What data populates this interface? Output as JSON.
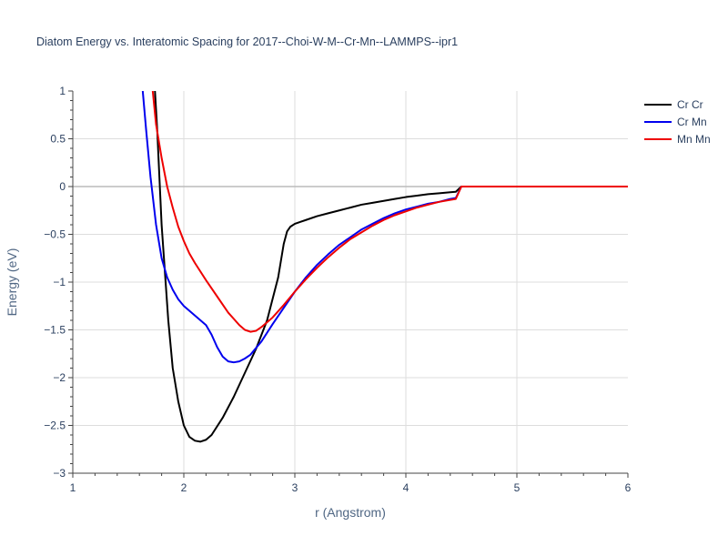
{
  "chart_data": {
    "type": "line",
    "title": "Diatom Energy vs. Interatomic Spacing for 2017--Choi-W-M--Cr-Mn--LAMMPS--ipr1",
    "xlabel": "r (Angstrom)",
    "ylabel": "Energy (eV)",
    "xlim": [
      1,
      6
    ],
    "ylim": [
      -3,
      1
    ],
    "xticks": [
      "1",
      "2",
      "3",
      "4",
      "5",
      "6"
    ],
    "yticks": [
      "1",
      "0.5",
      "0",
      "−0.5",
      "−1",
      "−1.5",
      "−2",
      "−2.5",
      "−3"
    ],
    "grid": true,
    "legend_position": "top-right",
    "series": [
      {
        "name": "Cr Cr",
        "color": "#000000",
        "x": [
          1.74,
          1.76,
          1.78,
          1.8,
          1.83,
          1.86,
          1.9,
          1.95,
          2.0,
          2.05,
          2.1,
          2.15,
          2.2,
          2.25,
          2.35,
          2.45,
          2.55,
          2.65,
          2.75,
          2.85,
          2.9,
          2.93,
          2.96,
          3.0,
          3.05,
          3.1,
          3.2,
          3.3,
          3.4,
          3.5,
          3.6,
          3.7,
          3.8,
          3.9,
          4.0,
          4.1,
          4.2,
          4.3,
          4.4,
          4.45,
          4.5,
          4.6,
          5.0,
          5.5,
          6.0
        ],
        "y": [
          1.0,
          0.6,
          0.1,
          -0.4,
          -0.9,
          -1.4,
          -1.9,
          -2.25,
          -2.5,
          -2.62,
          -2.66,
          -2.67,
          -2.65,
          -2.6,
          -2.42,
          -2.2,
          -1.95,
          -1.7,
          -1.4,
          -0.95,
          -0.6,
          -0.47,
          -0.42,
          -0.39,
          -0.37,
          -0.35,
          -0.31,
          -0.28,
          -0.25,
          -0.22,
          -0.19,
          -0.17,
          -0.15,
          -0.13,
          -0.11,
          -0.095,
          -0.08,
          -0.07,
          -0.06,
          -0.055,
          0,
          0,
          0,
          0,
          0
        ]
      },
      {
        "name": "Cr Mn",
        "color": "#0000ee",
        "x": [
          1.63,
          1.66,
          1.7,
          1.75,
          1.8,
          1.85,
          1.9,
          1.95,
          2.0,
          2.1,
          2.2,
          2.25,
          2.3,
          2.35,
          2.4,
          2.45,
          2.5,
          2.55,
          2.6,
          2.7,
          2.8,
          2.9,
          3.0,
          3.1,
          3.2,
          3.3,
          3.4,
          3.5,
          3.6,
          3.7,
          3.8,
          3.9,
          4.0,
          4.1,
          4.2,
          4.3,
          4.4,
          4.45,
          4.5,
          4.6,
          5.0,
          5.5,
          6.0
        ],
        "y": [
          1.0,
          0.6,
          0.1,
          -0.4,
          -0.75,
          -0.95,
          -1.08,
          -1.18,
          -1.25,
          -1.35,
          -1.45,
          -1.55,
          -1.68,
          -1.78,
          -1.83,
          -1.84,
          -1.83,
          -1.8,
          -1.76,
          -1.62,
          -1.44,
          -1.27,
          -1.1,
          -0.95,
          -0.82,
          -0.71,
          -0.61,
          -0.53,
          -0.45,
          -0.39,
          -0.33,
          -0.28,
          -0.24,
          -0.21,
          -0.18,
          -0.16,
          -0.13,
          -0.12,
          0,
          0,
          0,
          0,
          0
        ]
      },
      {
        "name": "Mn Mn",
        "color": "#ee0000",
        "x": [
          1.72,
          1.75,
          1.8,
          1.85,
          1.9,
          1.95,
          2.0,
          2.05,
          2.1,
          2.2,
          2.3,
          2.4,
          2.5,
          2.55,
          2.6,
          2.65,
          2.7,
          2.8,
          2.9,
          3.0,
          3.1,
          3.2,
          3.3,
          3.4,
          3.5,
          3.6,
          3.7,
          3.8,
          3.9,
          4.0,
          4.1,
          4.2,
          4.3,
          4.4,
          4.45,
          4.5,
          4.6,
          5.0,
          5.5,
          6.0
        ],
        "y": [
          1.0,
          0.65,
          0.3,
          0.0,
          -0.22,
          -0.42,
          -0.57,
          -0.7,
          -0.8,
          -0.98,
          -1.15,
          -1.32,
          -1.45,
          -1.5,
          -1.52,
          -1.51,
          -1.47,
          -1.37,
          -1.24,
          -1.1,
          -0.97,
          -0.85,
          -0.74,
          -0.64,
          -0.55,
          -0.48,
          -0.41,
          -0.35,
          -0.3,
          -0.26,
          -0.22,
          -0.19,
          -0.16,
          -0.14,
          -0.13,
          0,
          0,
          0,
          0,
          0
        ]
      }
    ]
  }
}
